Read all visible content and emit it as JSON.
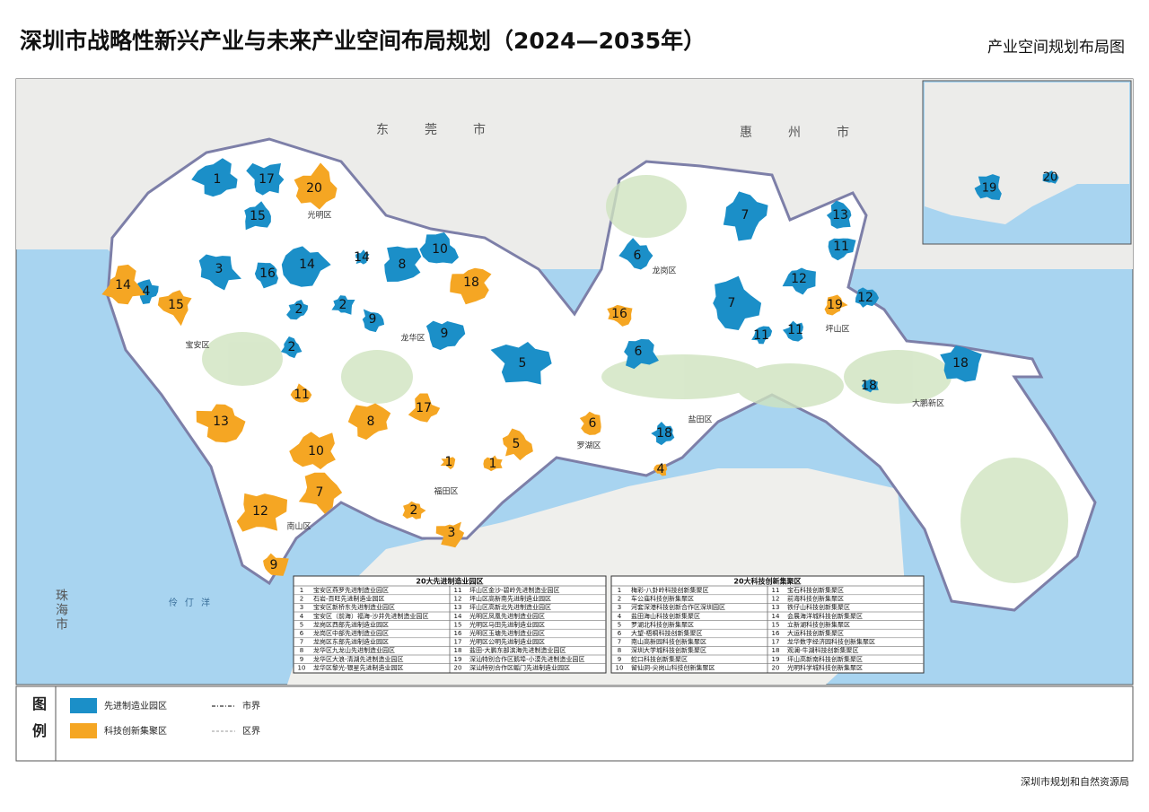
{
  "header": {
    "title": "深圳市战略性新兴产业与未来产业空间布局规划（2024—2035年）",
    "subtitle": "产业空间规划布局图"
  },
  "map": {
    "cities": [
      "东莞市",
      "惠州市",
      "珠海市"
    ],
    "districts": [
      "光明区",
      "宝安区",
      "龙华区",
      "龙岗区",
      "坪山区",
      "大鹏新区",
      "盐田区",
      "罗湖区",
      "福田区",
      "南山区"
    ],
    "sea": [
      "伶仃洋"
    ],
    "blue_zones": [
      1,
      17,
      15,
      3,
      16,
      14,
      14,
      4,
      2,
      2,
      9,
      8,
      10,
      9,
      5,
      2,
      6,
      7,
      7,
      13,
      11,
      12,
      12,
      11,
      11,
      6,
      18,
      18,
      18,
      19,
      20
    ],
    "orange_zones": [
      20,
      14,
      15,
      18,
      16,
      19,
      13,
      11,
      10,
      8,
      17,
      7,
      12,
      9,
      1,
      1,
      5,
      6,
      2,
      3,
      4
    ]
  },
  "tables": [
    {
      "title": "20大先进制造业园区",
      "items": [
        {
          "no": 1,
          "name": "宝安区燕罗先进制造业园区"
        },
        {
          "no": 2,
          "name": "石岩-百旺先进制造业园区"
        },
        {
          "no": 3,
          "name": "宝安区新桥东先进制造业园区"
        },
        {
          "no": 4,
          "name": "宝安区（前海）福海-沙井先进制造业园区"
        },
        {
          "no": 5,
          "name": "龙岗区西部先进制造业园区"
        },
        {
          "no": 6,
          "name": "龙岗区中部先进制造业园区"
        },
        {
          "no": 7,
          "name": "龙岗区东部先进制造业园区"
        },
        {
          "no": 8,
          "name": "龙华区九龙山先进制造业园区"
        },
        {
          "no": 9,
          "name": "龙华区大浪-清湖先进制造业园区"
        },
        {
          "no": 10,
          "name": "龙华区黎光-银星先进制造业园区"
        },
        {
          "no": 11,
          "name": "坪山区金沙-碧岭先进制造业园区"
        },
        {
          "no": 12,
          "name": "坪山区高新南先进制造业园区"
        },
        {
          "no": 13,
          "name": "坪山区高新北先进制造业园区"
        },
        {
          "no": 14,
          "name": "光明区凤凰先进制造业园区"
        },
        {
          "no": 15,
          "name": "光明区马田先进制造业园区"
        },
        {
          "no": 16,
          "name": "光明区玉塘先进制造业园区"
        },
        {
          "no": 17,
          "name": "光明区公明先进制造业园区"
        },
        {
          "no": 18,
          "name": "盐田-大鹏东部滨海先进制造业园区"
        },
        {
          "no": 19,
          "name": "深汕特别合作区鹅埠-小漠先进制造业园区"
        },
        {
          "no": 20,
          "name": "深汕特别合作区鲘门先进制造业园区"
        }
      ]
    },
    {
      "title": "20大科技创新集聚区",
      "items": [
        {
          "no": 1,
          "name": "梅彩-八卦岭科技创新集聚区"
        },
        {
          "no": 2,
          "name": "车公庙科技创新集聚区"
        },
        {
          "no": 3,
          "name": "河套深港科技创新合作区深圳园区"
        },
        {
          "no": 4,
          "name": "盐田海山科技创新集聚区"
        },
        {
          "no": 5,
          "name": "罗湖北科技创新集聚区"
        },
        {
          "no": 6,
          "name": "大望-梧桐科技创新集聚区"
        },
        {
          "no": 7,
          "name": "南山高新园科技创新集聚区"
        },
        {
          "no": 8,
          "name": "深圳大学城科技创新集聚区"
        },
        {
          "no": 9,
          "name": "蛇口科技创新集聚区"
        },
        {
          "no": 10,
          "name": "留仙洞-尖岗山科技创新集聚区"
        },
        {
          "no": 11,
          "name": "宝石科技创新集聚区"
        },
        {
          "no": 12,
          "name": "前海科技创新集聚区"
        },
        {
          "no": 13,
          "name": "铁仔山科技创新集聚区"
        },
        {
          "no": 14,
          "name": "会展海洋城科技创新集聚区"
        },
        {
          "no": 15,
          "name": "立新湖科技创新集聚区"
        },
        {
          "no": 16,
          "name": "大运科技创新集聚区"
        },
        {
          "no": 17,
          "name": "龙华数字经济园科技创新集聚区"
        },
        {
          "no": 18,
          "name": "观澜-牛湖科技创新集聚区"
        },
        {
          "no": 19,
          "name": "坪山高新南科技创新集聚区"
        },
        {
          "no": 20,
          "name": "光明科学城科技创新集聚区"
        }
      ]
    }
  ],
  "legend": {
    "title": "图例",
    "items": [
      {
        "label": "先进制造业园区",
        "color": "#1b8fc8"
      },
      {
        "label": "科技创新集聚区",
        "color": "#f5a623"
      },
      {
        "label": "市界"
      },
      {
        "label": "区界"
      }
    ]
  },
  "footer": {
    "source": "深圳市规划和自然资源局"
  }
}
